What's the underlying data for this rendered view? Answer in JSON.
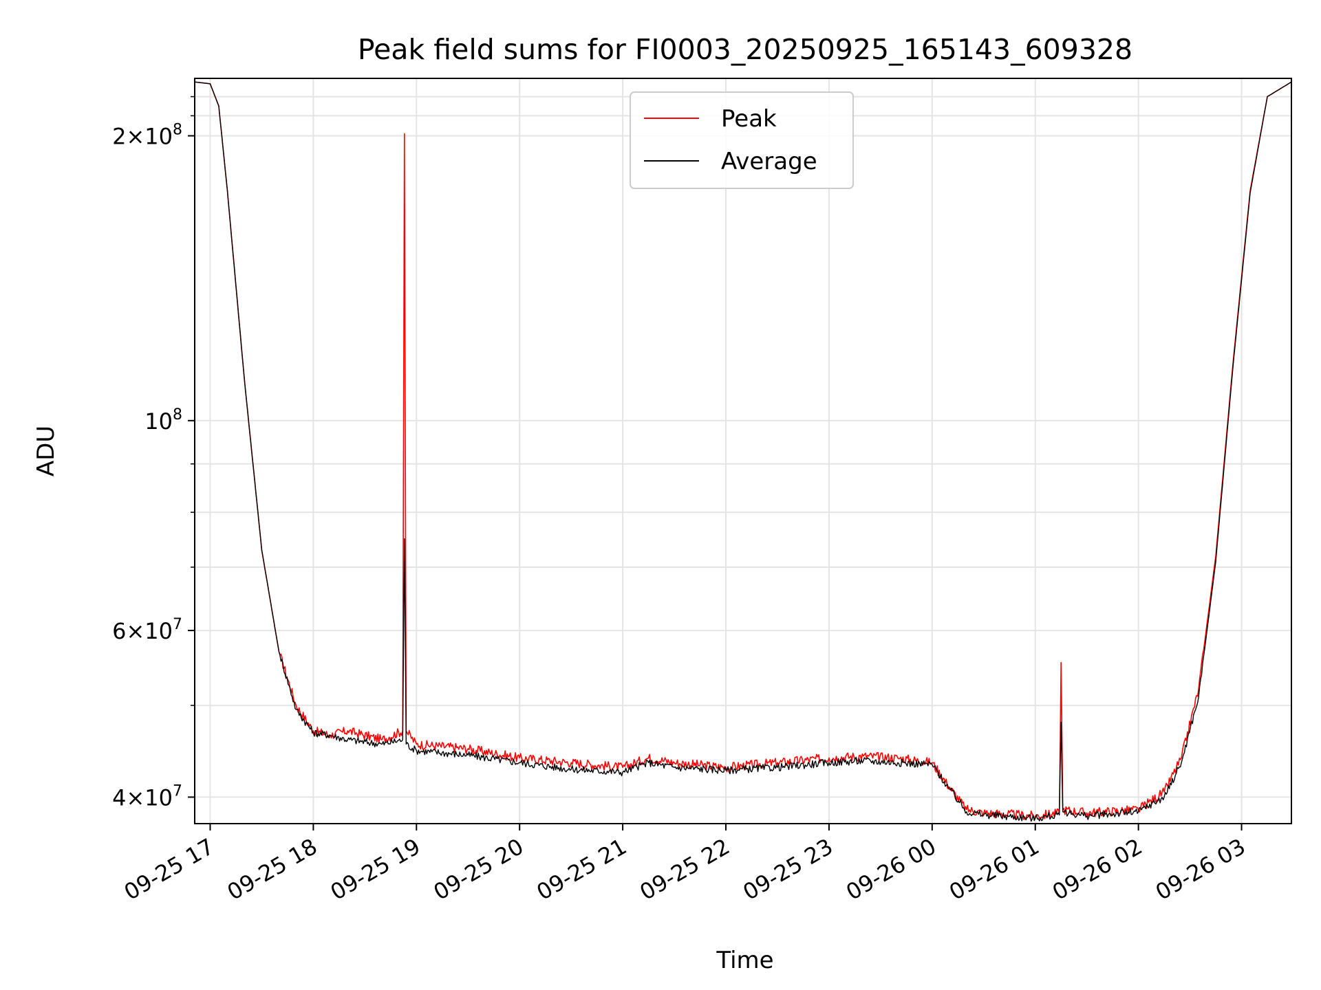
{
  "chart_data": {
    "type": "line",
    "title": "Peak field sums for FI0003_20250925_165143_609328",
    "xlabel": "Time",
    "ylabel": "ADU",
    "yscale": "log",
    "ylim": [
      37500000,
      230000000
    ],
    "xlim": [
      "2025-09-25 16:51",
      "2025-09-26 03:29"
    ],
    "grid": true,
    "legend": {
      "position": "upper center",
      "entries": [
        "Peak",
        "Average"
      ]
    },
    "x_ticks": [
      "09-25 17",
      "09-25 18",
      "09-25 19",
      "09-25 20",
      "09-25 21",
      "09-25 22",
      "09-25 23",
      "09-26 00",
      "09-26 01",
      "09-26 02",
      "09-26 03"
    ],
    "y_ticks": [
      {
        "value": 40000000,
        "mantissa": "4",
        "exponent": "7"
      },
      {
        "value": 60000000,
        "mantissa": "6",
        "exponent": "7"
      },
      {
        "value": 100000000,
        "mantissa": "",
        "exponent": "8"
      },
      {
        "value": 200000000,
        "mantissa": "2",
        "exponent": "8"
      }
    ],
    "colors": {
      "Peak": "#ff0000",
      "Average": "#000000"
    },
    "series": [
      {
        "name": "Peak",
        "x": [
          "2025-09-25 16:51",
          "2025-09-25 17:00",
          "2025-09-25 17:05",
          "2025-09-25 17:10",
          "2025-09-25 17:20",
          "2025-09-25 17:30",
          "2025-09-25 17:40",
          "2025-09-25 17:50",
          "2025-09-25 18:00",
          "2025-09-25 18:10",
          "2025-09-25 18:20",
          "2025-09-25 18:40",
          "2025-09-25 18:52",
          "2025-09-25 18:53",
          "2025-09-25 18:54",
          "2025-09-25 19:00",
          "2025-09-25 19:30",
          "2025-09-25 20:00",
          "2025-09-25 20:30",
          "2025-09-25 21:00",
          "2025-09-25 21:15",
          "2025-09-25 21:30",
          "2025-09-25 22:00",
          "2025-09-25 22:30",
          "2025-09-25 23:00",
          "2025-09-25 23:20",
          "2025-09-25 23:40",
          "2025-09-26 00:00",
          "2025-09-26 00:10",
          "2025-09-26 00:20",
          "2025-09-26 00:30",
          "2025-09-26 01:00",
          "2025-09-26 01:14",
          "2025-09-26 01:15",
          "2025-09-26 01:16",
          "2025-09-26 01:30",
          "2025-09-26 02:00",
          "2025-09-26 02:15",
          "2025-09-26 02:25",
          "2025-09-26 02:35",
          "2025-09-26 02:45",
          "2025-09-26 02:55",
          "2025-09-26 03:05",
          "2025-09-26 03:15",
          "2025-09-26 03:29"
        ],
        "y": [
          228000000,
          227000000,
          215000000,
          175000000,
          110000000,
          73000000,
          57000000,
          50000000,
          47000000,
          46500000,
          47000000,
          46000000,
          47000000,
          201000000,
          47000000,
          45500000,
          45000000,
          44000000,
          43500000,
          43000000,
          44000000,
          43500000,
          43000000,
          43500000,
          44000000,
          44200000,
          44000000,
          43500000,
          41000000,
          38800000,
          38500000,
          38200000,
          38500000,
          55500000,
          38800000,
          38500000,
          38800000,
          40500000,
          44000000,
          52000000,
          72000000,
          115000000,
          175000000,
          220000000,
          228000000
        ]
      },
      {
        "name": "Average",
        "x": [
          "2025-09-25 16:51",
          "2025-09-25 17:00",
          "2025-09-25 17:05",
          "2025-09-25 17:10",
          "2025-09-25 17:20",
          "2025-09-25 17:30",
          "2025-09-25 17:40",
          "2025-09-25 17:50",
          "2025-09-25 18:00",
          "2025-09-25 18:10",
          "2025-09-25 18:20",
          "2025-09-25 18:40",
          "2025-09-25 18:52",
          "2025-09-25 18:53",
          "2025-09-25 18:54",
          "2025-09-25 19:00",
          "2025-09-25 19:30",
          "2025-09-25 20:00",
          "2025-09-25 20:30",
          "2025-09-25 21:00",
          "2025-09-25 21:15",
          "2025-09-25 21:30",
          "2025-09-25 22:00",
          "2025-09-25 22:30",
          "2025-09-25 23:00",
          "2025-09-25 23:20",
          "2025-09-25 23:40",
          "2025-09-26 00:00",
          "2025-09-26 00:10",
          "2025-09-26 00:20",
          "2025-09-26 00:30",
          "2025-09-26 01:00",
          "2025-09-26 01:14",
          "2025-09-26 01:15",
          "2025-09-26 01:16",
          "2025-09-26 01:30",
          "2025-09-26 02:00",
          "2025-09-26 02:15",
          "2025-09-26 02:25",
          "2025-09-26 02:35",
          "2025-09-26 02:45",
          "2025-09-26 02:55",
          "2025-09-26 03:05",
          "2025-09-26 03:15",
          "2025-09-26 03:29"
        ],
        "y": [
          228000000,
          227000000,
          215000000,
          175000000,
          110000000,
          73000000,
          57000000,
          49500000,
          46800000,
          46500000,
          46000000,
          45500000,
          46000000,
          75000000,
          45500000,
          44800000,
          44300000,
          43500000,
          42800000,
          42500000,
          43500000,
          43000000,
          42700000,
          43000000,
          43500000,
          43700000,
          43500000,
          43300000,
          40800000,
          38600000,
          38300000,
          38000000,
          38300000,
          48000000,
          38600000,
          38200000,
          38600000,
          40000000,
          43500000,
          51000000,
          71000000,
          114000000,
          174000000,
          220000000,
          228000000
        ]
      }
    ]
  }
}
